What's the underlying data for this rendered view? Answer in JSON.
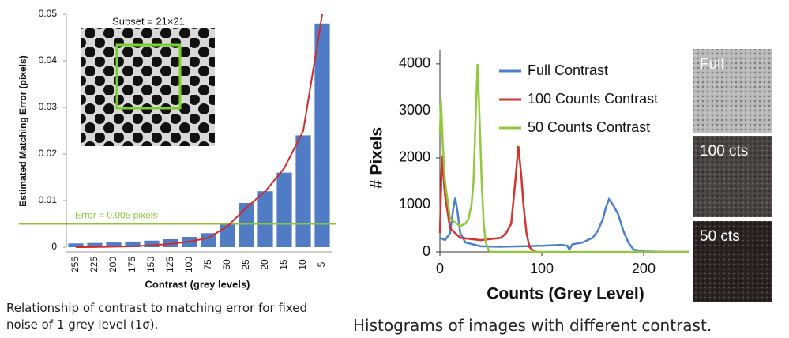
{
  "chart_data": [
    {
      "type": "bar",
      "xlabel": "Contrast (grey levels)",
      "ylabel": "Estimated Matching Error (pixels)",
      "categories": [
        "255",
        "225",
        "200",
        "175",
        "150",
        "125",
        "100",
        "75",
        "50",
        "25",
        "20",
        "15",
        "10",
        "5"
      ],
      "values": [
        0.0008,
        0.0009,
        0.001,
        0.0012,
        0.0014,
        0.0017,
        0.0022,
        0.003,
        0.005,
        0.0095,
        0.012,
        0.016,
        0.024,
        0.048
      ],
      "color": "#4f7cc4",
      "fit": {
        "values": [
          0,
          3e-05,
          0.0001,
          0.0002,
          0.0004,
          0.0007,
          0.0012,
          0.002,
          0.0045,
          0.0085,
          0.012,
          0.017,
          0.025,
          0.05
        ],
        "color": "#d02a2a"
      },
      "hline": {
        "value": 0.005,
        "label": "Error = 0.005 pixels",
        "color": "#8cc43c"
      },
      "inset_label": "Subset = 21×21",
      "ylim": [
        0,
        0.05
      ],
      "yticks": [
        0,
        0.01,
        0.02,
        0.03,
        0.04,
        0.05
      ],
      "grid": false,
      "caption": "Relationship of contrast to matching error for fixed noise of 1 grey level (1σ)."
    },
    {
      "type": "line",
      "xlabel": "Counts (Grey Level)",
      "ylabel": "# Pixels",
      "series": [
        {
          "name": "Full Contrast",
          "color": "#4a7fd0",
          "x": [
            0,
            5,
            10,
            13,
            15,
            17,
            20,
            25,
            40,
            60,
            80,
            100,
            120,
            125,
            127,
            130,
            140,
            150,
            155,
            160,
            163,
            166,
            170,
            175,
            180,
            185,
            190,
            200,
            220,
            245
          ],
          "values": [
            300,
            250,
            400,
            900,
            1150,
            900,
            400,
            200,
            120,
            110,
            120,
            130,
            150,
            130,
            50,
            160,
            200,
            300,
            450,
            700,
            950,
            1120,
            1000,
            800,
            450,
            200,
            50,
            10,
            0,
            0
          ]
        },
        {
          "name": "100 Counts Contrast",
          "color": "#d8322e",
          "x": [
            0,
            2,
            5,
            10,
            20,
            40,
            60,
            65,
            70,
            74,
            77,
            80,
            82,
            85,
            88,
            92,
            95
          ],
          "values": [
            400,
            2050,
            1200,
            500,
            300,
            250,
            300,
            400,
            600,
            1500,
            2250,
            1600,
            1000,
            400,
            100,
            20,
            0
          ]
        },
        {
          "name": "50 Counts Contrast",
          "color": "#92c83c",
          "x": [
            0,
            1,
            3,
            5,
            10,
            20,
            25,
            28,
            31,
            33,
            35,
            37,
            39,
            41,
            43,
            45,
            48,
            50,
            100,
            200,
            245
          ],
          "values": [
            2500,
            3250,
            2200,
            1500,
            700,
            550,
            600,
            700,
            1000,
            1500,
            2800,
            4000,
            2800,
            1500,
            600,
            200,
            30,
            0,
            0,
            0,
            0
          ]
        }
      ],
      "images": [
        "Full",
        "100 cts",
        "50 cts"
      ],
      "xlim": [
        0,
        245
      ],
      "ylim": [
        0,
        4300
      ],
      "xticks": [
        0,
        100,
        200
      ],
      "yticks": [
        0,
        1000,
        2000,
        3000,
        4000
      ],
      "grid": false,
      "caption": "Histograms of images with different contrast."
    }
  ]
}
